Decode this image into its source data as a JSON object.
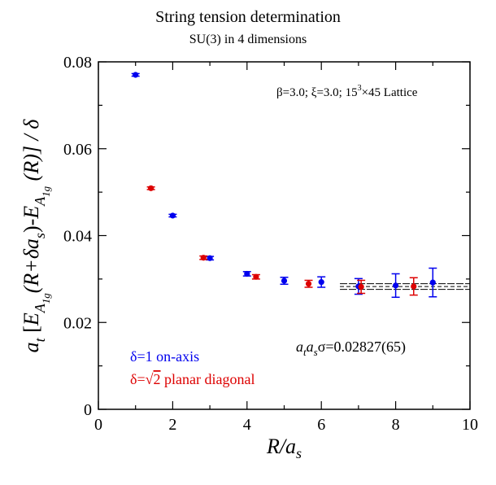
{
  "chart_data": {
    "type": "scatter",
    "title": "String tension determination",
    "subtitle": "SU(3) in 4 dimensions",
    "xlabel": {
      "main": "R/a",
      "sub": "s"
    },
    "ylabel": {
      "segments": [
        {
          "t": "a",
          "style": "italic"
        },
        {
          "t": "t",
          "style": "italic-sub"
        },
        {
          "t": " [",
          "style": "roman"
        },
        {
          "t": "E",
          "style": "italic"
        },
        {
          "t": "A",
          "style": "italic-sub"
        },
        {
          "t": "1g",
          "style": "italic-subsub"
        },
        {
          "t": "(R+δa",
          "style": "roman-italic-R"
        },
        {
          "t": "s",
          "style": "italic-sub"
        },
        {
          "t": ")-",
          "style": "roman"
        },
        {
          "t": "E",
          "style": "italic"
        },
        {
          "t": "A",
          "style": "italic-sub"
        },
        {
          "t": "1g",
          "style": "italic-subsub"
        },
        {
          "t": " (R)] / δ",
          "style": "roman-italic-R"
        }
      ]
    },
    "xlim": [
      0,
      10
    ],
    "ylim": [
      0,
      0.08
    ],
    "x_ticks": [
      0,
      2,
      4,
      6,
      8,
      10
    ],
    "x_tick_labels": [
      "0",
      "2",
      "4",
      "6",
      "8",
      "10"
    ],
    "y_ticks": [
      0,
      0.02,
      0.04,
      0.06,
      0.08
    ],
    "y_tick_labels": [
      "0",
      "0.02",
      "0.04",
      "0.06",
      "0.08"
    ],
    "grid": false,
    "series": [
      {
        "name": "δ=1 on-axis",
        "color": "#0000ee",
        "marker": "circle",
        "x": [
          1,
          2,
          3,
          4,
          5,
          6,
          7,
          8,
          9
        ],
        "y": [
          0.077,
          0.0446,
          0.0348,
          0.0312,
          0.0296,
          0.0293,
          0.0283,
          0.0285,
          0.0292
        ],
        "yerr": [
          0.0003,
          0.0003,
          0.0004,
          0.0005,
          0.0008,
          0.0012,
          0.0018,
          0.0027,
          0.0033
        ]
      },
      {
        "name": "δ=√2 planar diagonal",
        "color": "#dd0000",
        "marker": "circle",
        "x": [
          1.414,
          2.828,
          4.243,
          5.657,
          7.071,
          8.485
        ],
        "y": [
          0.0509,
          0.0349,
          0.0305,
          0.0289,
          0.0282,
          0.0283
        ],
        "yerr": [
          0.0003,
          0.0004,
          0.0005,
          0.0008,
          0.0015,
          0.002
        ]
      }
    ],
    "fit": {
      "x_range": [
        6.5,
        10
      ],
      "value": 0.02827,
      "error": 0.00065,
      "central_style": "dashed",
      "band_style": "solid"
    },
    "annotations": {
      "lattice": {
        "beta": "β=3.0;",
        "xi": "ξ=3.0;",
        "size_base": "15",
        "size_exp": "3",
        "size_rest": "×45 Lattice"
      },
      "tension": {
        "a1": "a",
        "s1": "t",
        "a2": "a",
        "s2": "s",
        "value": "σ=0.02827(65)"
      }
    },
    "legend": {
      "position": "bottom-left",
      "entries": [
        {
          "label": "δ=1 on-axis",
          "color": "#0000ee"
        },
        {
          "prefix": "δ=",
          "sqrt": "2",
          "suffix": " planar diagonal",
          "color": "#dd0000"
        }
      ]
    }
  }
}
